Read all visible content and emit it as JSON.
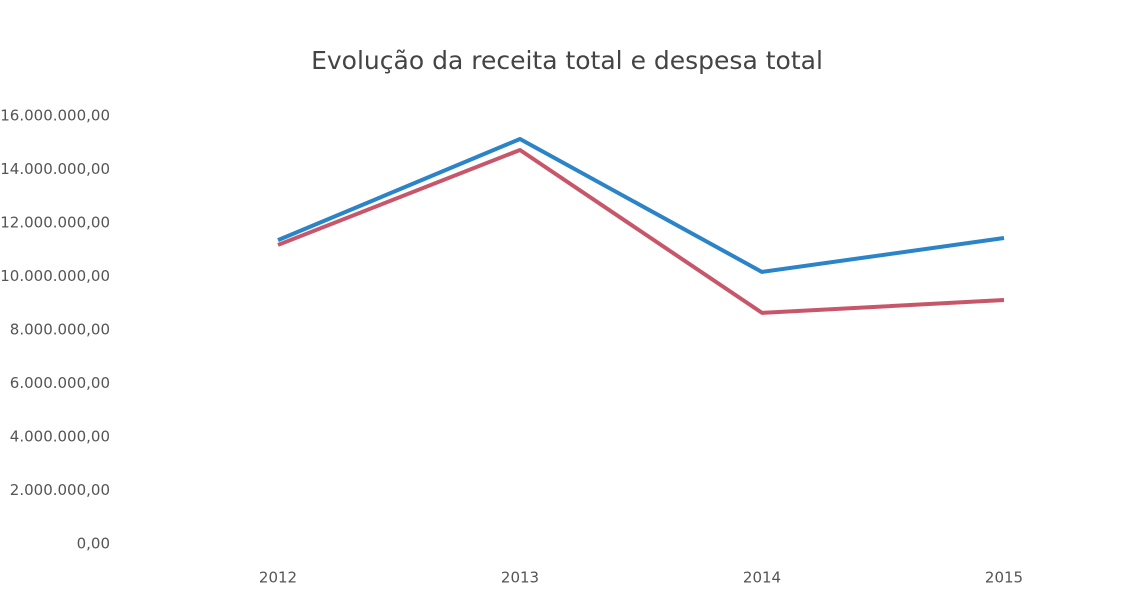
{
  "chart_data": {
    "type": "line",
    "title": "Evolução da receita total e despesa total",
    "categories": [
      "2012",
      "2013",
      "2014",
      "2015"
    ],
    "series": [
      {
        "color": "#2b83c8",
        "values": [
          11360000,
          15140000,
          10170000,
          11440000
        ]
      },
      {
        "color": "#c8566a",
        "values": [
          11180000,
          14730000,
          8640000,
          9120000
        ]
      }
    ],
    "ylim": [
      0,
      16000000
    ],
    "yticks": [
      {
        "value": 0,
        "label": "0,00"
      },
      {
        "value": 2000000,
        "label": "2.000.000,00"
      },
      {
        "value": 4000000,
        "label": "4.000.000,00"
      },
      {
        "value": 6000000,
        "label": "6.000.000,00"
      },
      {
        "value": 8000000,
        "label": "8.000.000,00"
      },
      {
        "value": 10000000,
        "label": "10.000.000,00"
      },
      {
        "value": 12000000,
        "label": "12.000.000,00"
      },
      {
        "value": 14000000,
        "label": "14.000.000,00"
      },
      {
        "value": 16000000,
        "label": "16.000.000,00"
      }
    ],
    "grid": false
  }
}
